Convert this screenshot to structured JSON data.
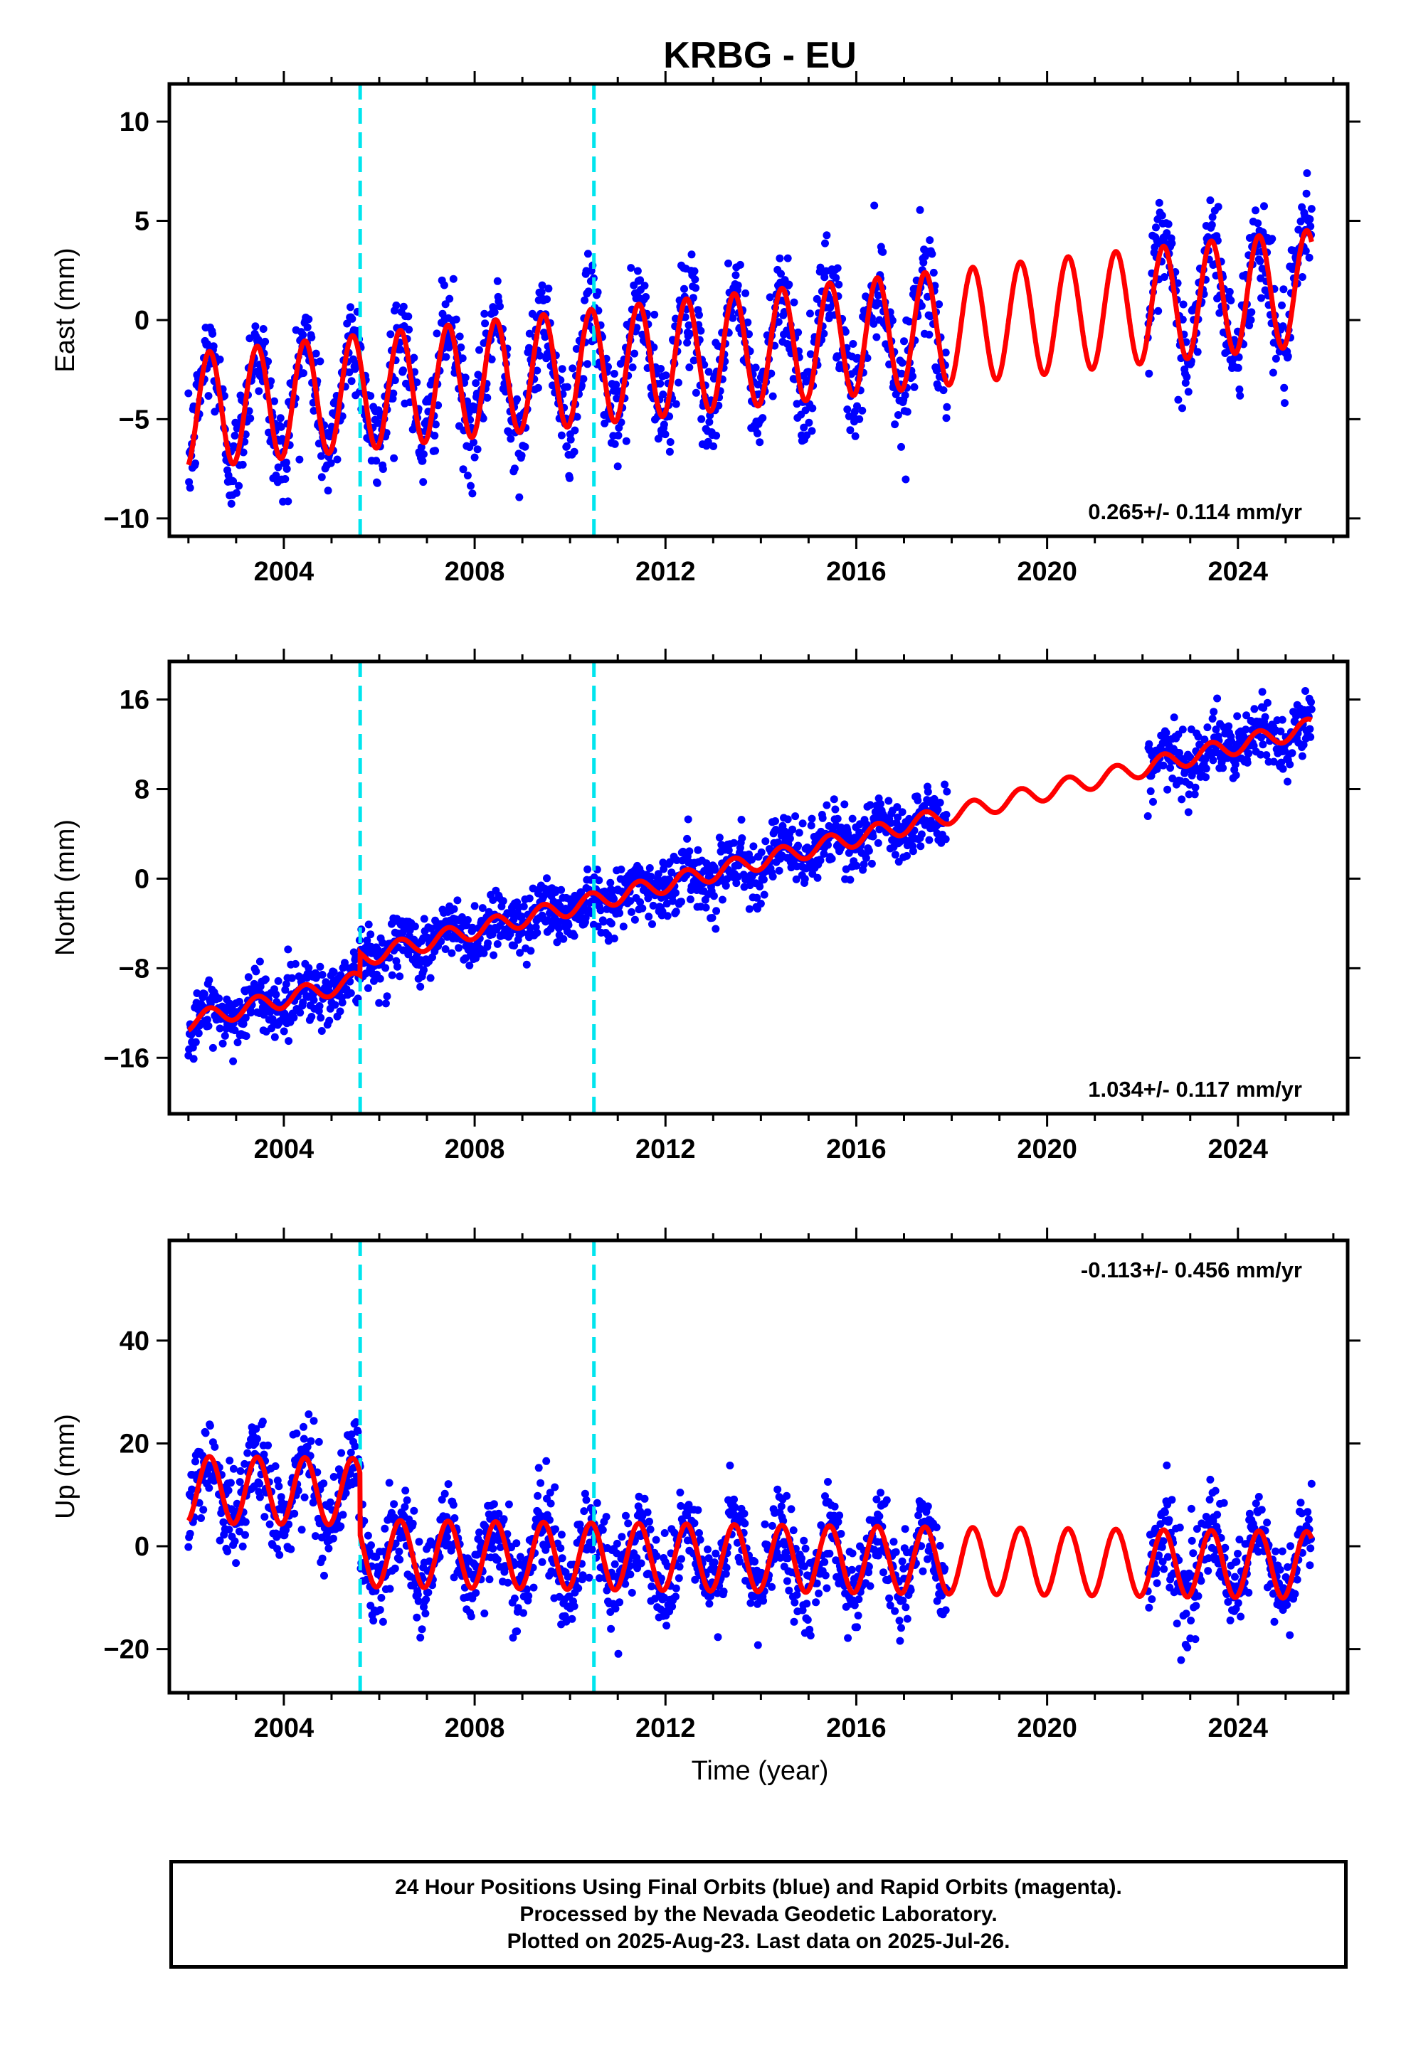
{
  "title": "KRBG - EU",
  "xlabel": "Time (year)",
  "colors": {
    "data": "#0000ff",
    "model": "#ff0000",
    "event": "#00e5ee",
    "frame": "#000000"
  },
  "footer": {
    "line1": "24 Hour Positions Using Final Orbits (blue) and Rapid Orbits (magenta).",
    "line2": "Processed by the Nevada Geodetic Laboratory.",
    "line3": "Plotted on 2025-Aug-23. Last data on 2025-Jul-26."
  },
  "chart_data": [
    {
      "type": "scatter",
      "component": "east",
      "ylabel": "East (mm)",
      "xlim": [
        2001.6,
        2026.3
      ],
      "ylim": [
        -10.9,
        11.9
      ],
      "xticks": [
        2004,
        2008,
        2012,
        2016,
        2020,
        2024
      ],
      "yticks": [
        -10,
        -5,
        0,
        5,
        10
      ],
      "rate_label": "0.265+/- 0.114 mm/yr",
      "rate_position": "bottom-right",
      "events": [
        2005.6,
        2010.5
      ],
      "model": {
        "rate": 0.265,
        "offsets": [
          {
            "at": 2002.0,
            "value": -4.6
          }
        ],
        "amplitude": 2.9,
        "gap": [
          2017.9,
          2022.1
        ]
      },
      "data_range": [
        2002.0,
        2025.55
      ],
      "data_gap": [
        2017.9,
        2022.1
      ],
      "scatter_sd": 1.3
    },
    {
      "type": "scatter",
      "component": "north",
      "ylabel": "North (mm)",
      "xlim": [
        2001.6,
        2026.3
      ],
      "ylim": [
        -21.0,
        19.4
      ],
      "xticks": [
        2004,
        2008,
        2012,
        2016,
        2020,
        2024
      ],
      "yticks": [
        -16,
        -8,
        0,
        8,
        16
      ],
      "rate_label": "1.034+/- 0.117 mm/yr",
      "rate_position": "bottom-right",
      "events": [
        2005.6,
        2010.5
      ],
      "model": {
        "rate": 1.034,
        "offsets": [
          {
            "at": 2002.0,
            "value": -12.8
          },
          {
            "at": 2005.6,
            "value": 2.0
          }
        ],
        "amplitude": 0.8,
        "gap": [
          2017.9,
          2022.1
        ]
      },
      "data_range": [
        2002.0,
        2025.55
      ],
      "data_gap": [
        2017.9,
        2022.1
      ],
      "scatter_sd": 1.4
    },
    {
      "type": "scatter",
      "component": "up",
      "ylabel": "Up (mm)",
      "xlim": [
        2001.6,
        2026.3
      ],
      "ylim": [
        -28.5,
        59.5
      ],
      "xticks": [
        2004,
        2008,
        2012,
        2016,
        2020,
        2024
      ],
      "yticks": [
        -20,
        0,
        20,
        40
      ],
      "rate_label": "-0.113+/- 0.456 mm/yr",
      "rate_position": "top-right",
      "events": [
        2005.6,
        2010.5
      ],
      "model": {
        "rate": -0.113,
        "offsets": [
          {
            "at": 2002.0,
            "value": 11.0
          },
          {
            "at": 2005.6,
            "value": -12.0
          }
        ],
        "amplitude": 6.5,
        "gap": [
          2017.9,
          2022.1
        ]
      },
      "data_range": [
        2002.0,
        2025.55
      ],
      "data_gap": [
        2017.9,
        2022.1
      ],
      "scatter_sd": 4.5
    }
  ]
}
